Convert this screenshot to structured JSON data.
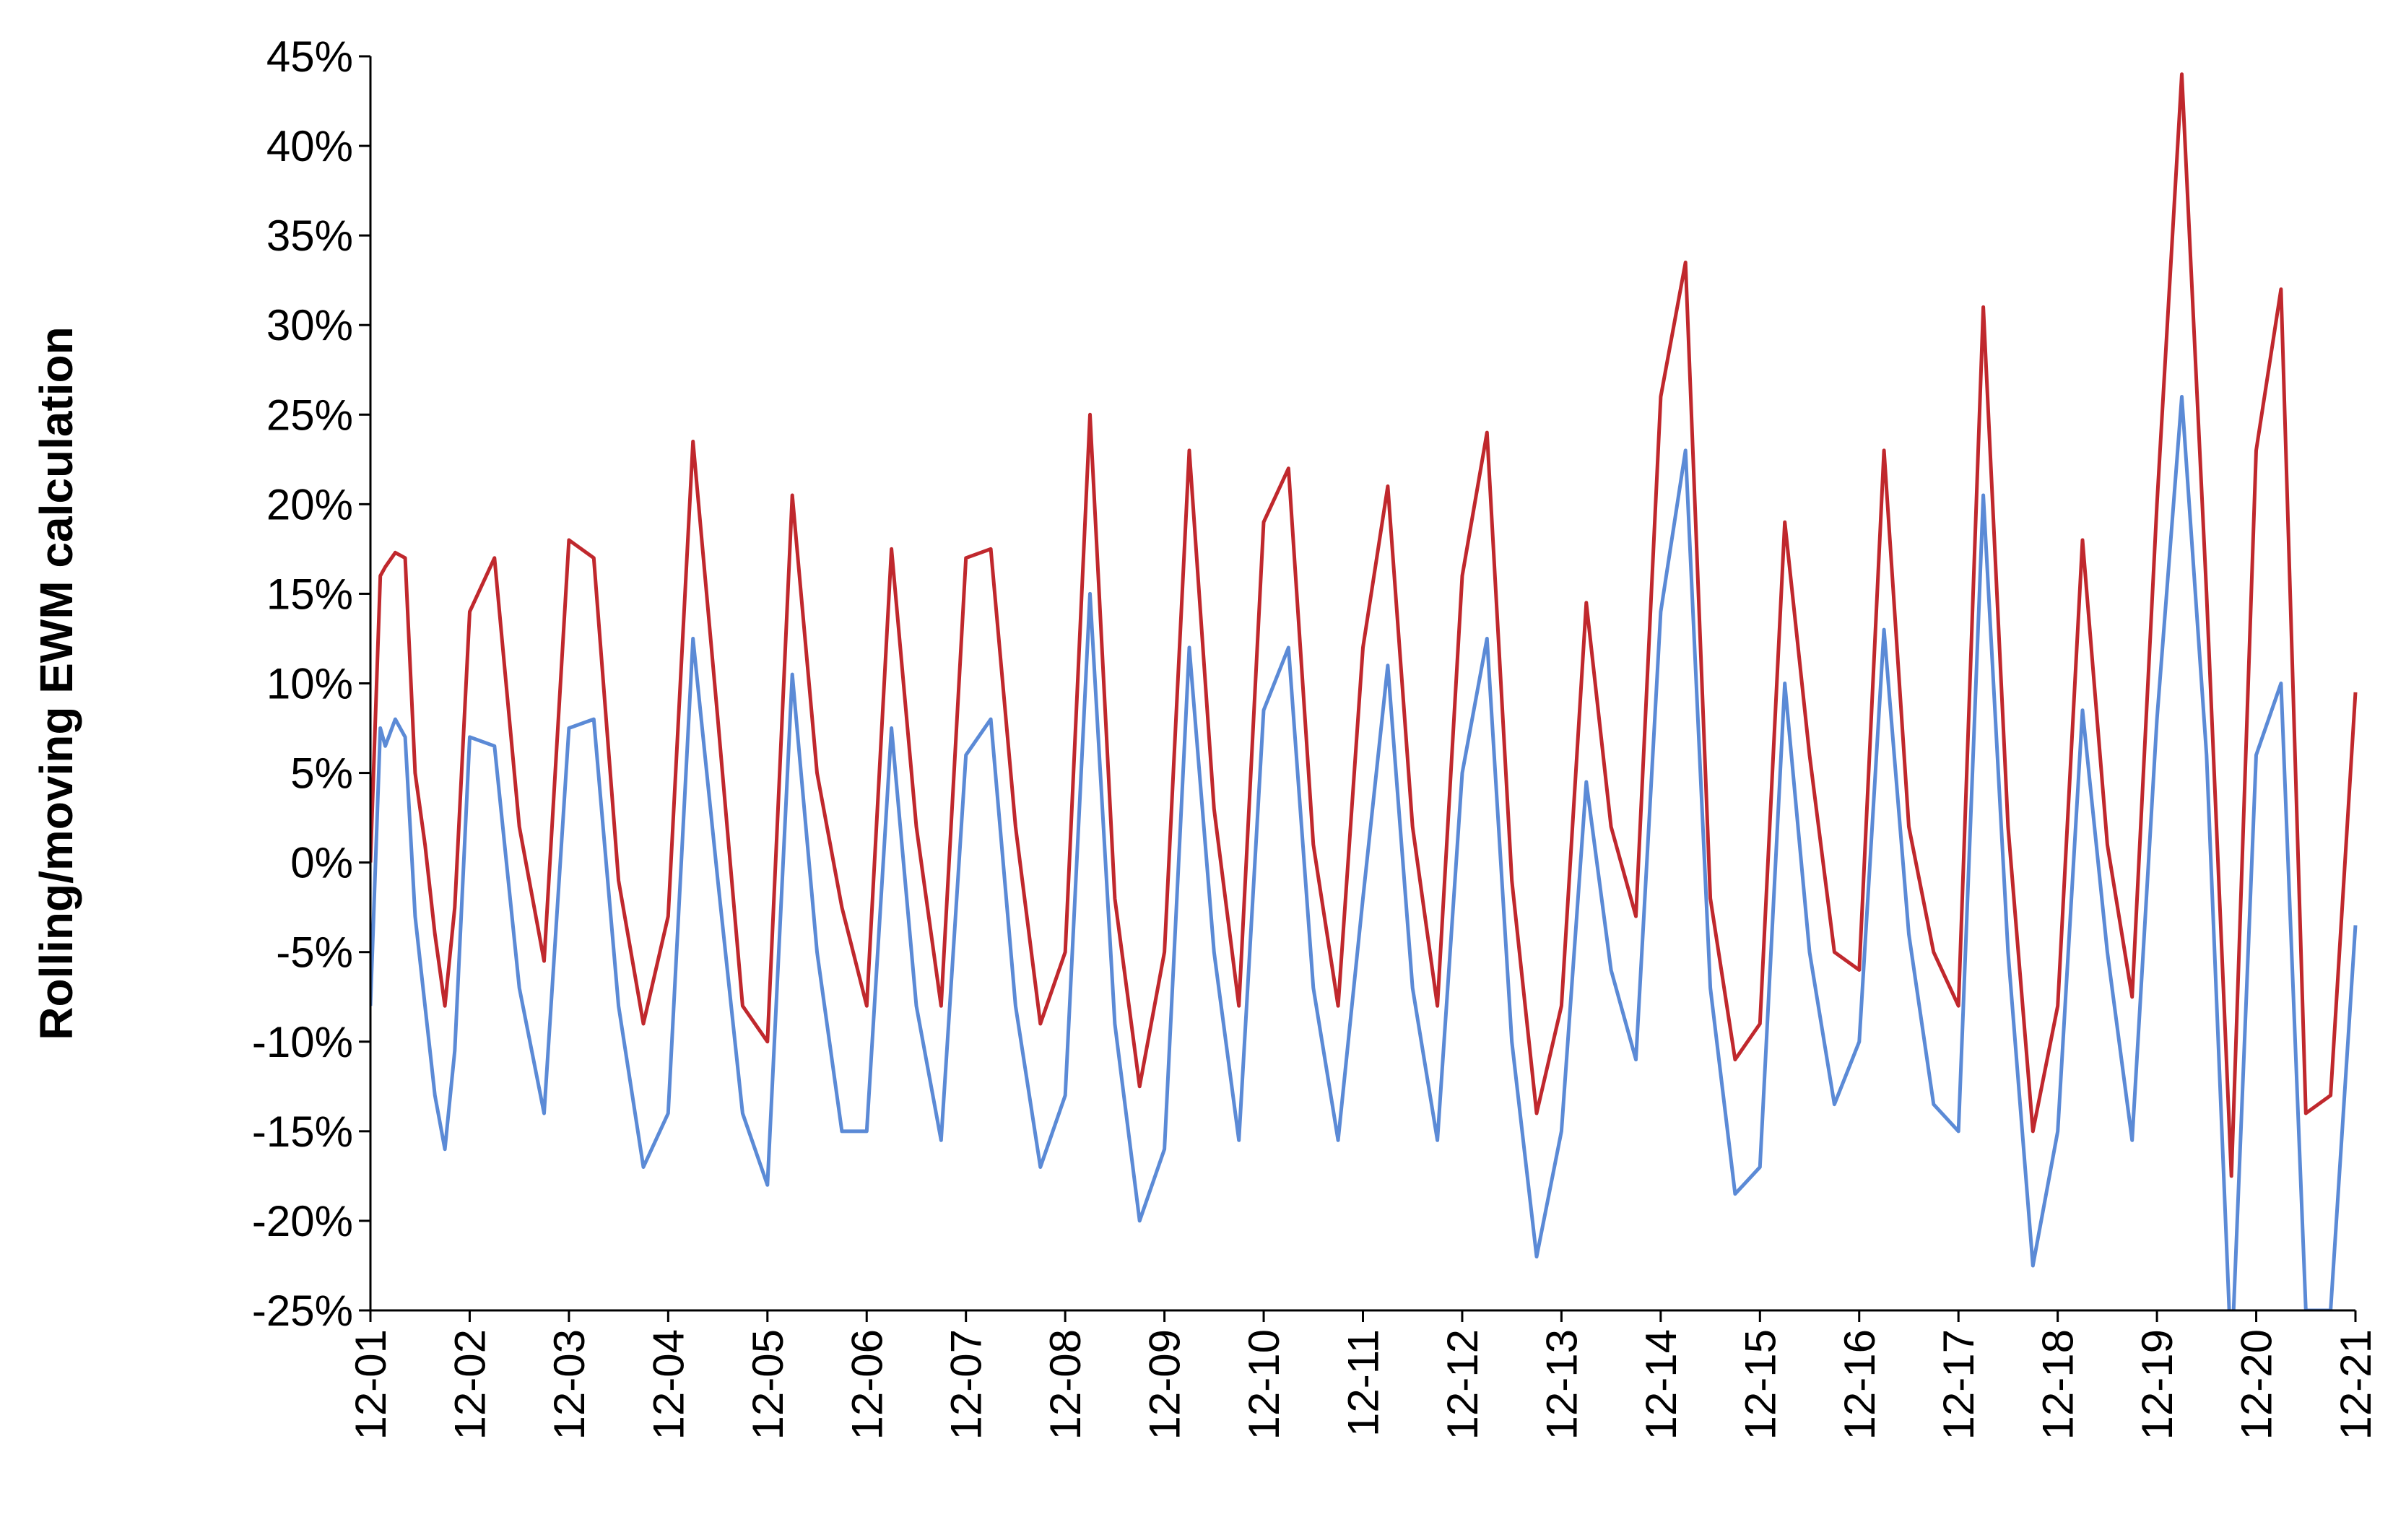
{
  "chart_data": {
    "type": "line",
    "title": "",
    "xlabel": "",
    "ylabel": "Rolling/moving EWM calculation",
    "ylim": [
      -25,
      45
    ],
    "y_unit": "%",
    "y_ticks": [
      "45%",
      "40%",
      "35%",
      "30%",
      "25%",
      "20%",
      "15%",
      "10%",
      "5%",
      "0%",
      "-5%",
      "-10%",
      "-15%",
      "-20%",
      "-25%"
    ],
    "y_tick_values": [
      45,
      40,
      35,
      30,
      25,
      20,
      15,
      10,
      5,
      0,
      -5,
      -10,
      -15,
      -20,
      -25
    ],
    "x_ticks": [
      "12-01",
      "12-02",
      "12-03",
      "12-04",
      "12-05",
      "12-06",
      "12-07",
      "12-08",
      "12-09",
      "12-10",
      "12-11",
      "12-12",
      "12-13",
      "12-14",
      "12-15",
      "12-16",
      "12-17",
      "12-18",
      "12-19",
      "12-20",
      "12-21"
    ],
    "x_label_rotation": -90,
    "grid": false,
    "legend": "none",
    "series": [
      {
        "color": "#c0282d",
        "x": [
          0.0,
          0.1,
          0.15,
          0.25,
          0.35,
          0.45,
          0.55,
          0.65,
          0.75,
          0.85,
          1.0,
          1.25,
          1.5,
          1.75,
          2.0,
          2.25,
          2.5,
          2.75,
          3.0,
          3.25,
          3.5,
          3.75,
          4.0,
          4.25,
          4.5,
          4.75,
          5.0,
          5.25,
          5.5,
          5.75,
          6.0,
          6.25,
          6.5,
          6.75,
          7.0,
          7.25,
          7.5,
          7.75,
          8.0,
          8.25,
          8.5,
          8.75,
          9.0,
          9.25,
          9.5,
          9.75,
          10.0,
          10.25,
          10.5,
          10.75,
          11.0,
          11.25,
          11.5,
          11.75,
          12.0,
          12.25,
          12.5,
          12.75,
          13.0,
          13.25,
          13.5,
          13.75,
          14.0,
          14.25,
          14.5,
          14.75,
          15.0,
          15.25,
          15.5,
          15.75,
          16.0,
          16.25,
          16.5,
          16.75,
          17.0,
          17.25,
          17.5,
          17.75,
          18.0,
          18.25,
          18.5,
          18.75,
          19.0,
          19.25,
          19.5,
          19.75,
          20.0
        ],
        "y": [
          0,
          16,
          16.5,
          17.3,
          17,
          5,
          1,
          -4,
          -8,
          -2.5,
          14,
          17,
          2,
          -5.5,
          18,
          17,
          -1,
          -9,
          -3,
          23.5,
          8,
          -8,
          -10,
          20.5,
          5,
          -2.5,
          -8,
          17.5,
          2,
          -8,
          17,
          17.5,
          2,
          -9,
          -5,
          25,
          -2,
          -12.5,
          -5,
          23,
          3,
          -8,
          19,
          22,
          1,
          -8,
          12,
          21,
          2,
          -8,
          16,
          24,
          -1,
          -14,
          -8,
          14.5,
          2,
          -3,
          26,
          33.5,
          -2,
          -11,
          -9,
          19,
          6,
          -5,
          -6,
          23,
          2,
          -5,
          -8,
          31,
          2,
          -15,
          -8,
          18,
          1,
          -7.5,
          20,
          44,
          15,
          -17.5,
          23,
          32,
          -14,
          -13,
          9.5
        ]
      },
      {
        "color": "#5b8ad6",
        "x": [
          0.0,
          0.1,
          0.15,
          0.25,
          0.35,
          0.45,
          0.55,
          0.65,
          0.75,
          0.85,
          1.0,
          1.25,
          1.5,
          1.75,
          2.0,
          2.25,
          2.5,
          2.75,
          3.0,
          3.25,
          3.5,
          3.75,
          4.0,
          4.25,
          4.5,
          4.75,
          5.0,
          5.25,
          5.5,
          5.75,
          6.0,
          6.25,
          6.5,
          6.75,
          7.0,
          7.25,
          7.5,
          7.75,
          8.0,
          8.25,
          8.5,
          8.75,
          9.0,
          9.25,
          9.5,
          9.75,
          10.0,
          10.25,
          10.5,
          10.75,
          11.0,
          11.25,
          11.5,
          11.75,
          12.0,
          12.25,
          12.5,
          12.75,
          13.0,
          13.25,
          13.5,
          13.75,
          14.0,
          14.25,
          14.5,
          14.75,
          15.0,
          15.25,
          15.5,
          15.75,
          16.0,
          16.25,
          16.5,
          16.75,
          17.0,
          17.25,
          17.5,
          17.75,
          18.0,
          18.25,
          18.5,
          18.75,
          19.0,
          19.25,
          19.5,
          19.75,
          20.0
        ],
        "y": [
          -8,
          7.5,
          6.5,
          8,
          7,
          -3,
          -8,
          -13,
          -16,
          -10.5,
          7,
          6.5,
          -7,
          -14,
          7.5,
          8,
          -8,
          -17,
          -14,
          12.5,
          -1,
          -14,
          -18,
          10.5,
          -5,
          -15,
          -15,
          7.5,
          -8,
          -15.5,
          6,
          8,
          -8,
          -17,
          -13,
          15,
          -9,
          -20,
          -16,
          12,
          -5,
          -15.5,
          8.5,
          12,
          -7,
          -15.5,
          -2,
          11,
          -7,
          -15.5,
          5,
          12.5,
          -10,
          -22,
          -15,
          4.5,
          -6,
          -11,
          14,
          23,
          -7,
          -18.5,
          -17,
          10,
          -5,
          -13.5,
          -10,
          13,
          -4,
          -13.5,
          -15,
          20.5,
          -5,
          -22.5,
          -15,
          8.5,
          -5,
          -15.5,
          8,
          26,
          6,
          -28,
          6,
          10,
          -25,
          -25,
          -3.5
        ]
      }
    ]
  }
}
